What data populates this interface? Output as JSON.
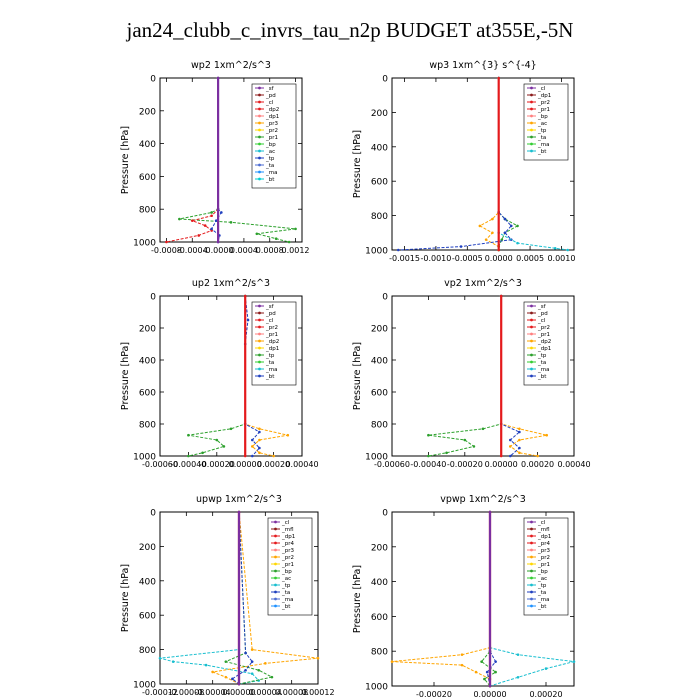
{
  "title": "jan24_clubb_c_invrs_tau_n2p  BUDGET at355E,-5N",
  "chart_data": [
    {
      "type": "line",
      "title": "wp2  1xm^2/s^3",
      "ylabel": "Pressure [hPa]",
      "ylim": [
        1000,
        0
      ],
      "xlim": [
        -0.0009,
        0.0013
      ],
      "xticks": [
        -0.0008,
        -0.0004,
        0,
        0.0004,
        0.0008,
        0.0012
      ],
      "xtick_labels": [
        "-0.0008",
        "-0.0004",
        "-0.0000",
        "0.0004",
        "0.0008",
        "0.0012"
      ],
      "yticks": [
        0,
        200,
        400,
        600,
        800,
        1000
      ],
      "legend": [
        "_sf",
        "_pd",
        "_cl",
        "_dp2",
        "_dp1",
        "_pr3",
        "_pr2",
        "_pr1",
        "_bp",
        "_ac",
        "_tp",
        "_ta",
        "_ma",
        "_bt"
      ],
      "legend_placement": "top-right",
      "series": [
        {
          "color": "#2ca02c",
          "p": [
            0,
            800,
            820,
            860,
            880,
            920,
            950,
            980,
            1000
          ],
          "v": [
            0,
            0,
            -0.0001,
            -0.0006,
            0.0002,
            0.0012,
            0.0006,
            0.0009,
            0.0011
          ]
        },
        {
          "color": "#e41a1c",
          "p": [
            0,
            800,
            840,
            870,
            900,
            930,
            960,
            1000
          ],
          "v": [
            0,
            0,
            -0.0001,
            -0.0004,
            -0.0002,
            -0.0001,
            -0.0003,
            -0.0008
          ]
        },
        {
          "color": "#1f3fbf",
          "p": [
            0,
            800,
            820,
            870,
            920,
            960,
            1000
          ],
          "v": [
            0,
            0,
            5e-05,
            -3e-05,
            -0.0001,
            2e-05,
            0
          ]
        },
        {
          "color": "#7b2fa0",
          "p": [
            0,
            1000
          ],
          "v": [
            0,
            0
          ]
        }
      ]
    },
    {
      "type": "line",
      "title": "wp3  1xm^{3} s^{-4}",
      "ylabel": "Pressure [hPa]",
      "ylim": [
        1000,
        0
      ],
      "xlim": [
        -0.0017,
        0.0012
      ],
      "xticks": [
        -0.0015,
        -0.001,
        -0.0005,
        0,
        0.0005,
        0.001
      ],
      "xtick_labels": [
        "-0.0015",
        "-0.0010",
        "-0.0005",
        "0.0000",
        "0.0005",
        "0.0010"
      ],
      "yticks": [
        0,
        200,
        400,
        600,
        800,
        1000
      ],
      "legend": [
        "_cl",
        "_dp1",
        "_pr2",
        "_pr1",
        "_bp",
        "_ac",
        "_tp",
        "_ta",
        "_ma",
        "_bt"
      ],
      "legend_placement": "top-right",
      "series": [
        {
          "color": "#ffa500",
          "p": [
            0,
            780,
            820,
            860,
            900,
            940,
            980,
            1000
          ],
          "v": [
            0,
            0,
            -0.0001,
            -0.0003,
            -0.0001,
            -0.0002,
            0,
            0
          ]
        },
        {
          "color": "#2ca02c",
          "p": [
            0,
            780,
            820,
            860,
            900,
            940,
            980,
            1000
          ],
          "v": [
            0,
            0,
            0.0001,
            0.0003,
            0.0001,
            5e-05,
            0,
            0
          ]
        },
        {
          "color": "#1f3fbf",
          "p": [
            0,
            780,
            820,
            860,
            900,
            940,
            980,
            1000
          ],
          "v": [
            0,
            0,
            0.0001,
            0.0002,
            0.0001,
            0.0002,
            -0.0006,
            -0.0016
          ]
        },
        {
          "color": "#17becf",
          "p": [
            0,
            900,
            960,
            990,
            1000
          ],
          "v": [
            0,
            0,
            0.0003,
            0.0009,
            0.0011
          ]
        },
        {
          "color": "#e41a1c",
          "p": [
            0,
            1000
          ],
          "v": [
            0,
            0
          ]
        }
      ]
    },
    {
      "type": "line",
      "title": "up2  1xm^2/s^3",
      "ylabel": "Pressure [hPa]",
      "ylim": [
        1000,
        0
      ],
      "xlim": [
        -0.0006,
        0.0004
      ],
      "xticks": [
        -0.0006,
        -0.0004,
        -0.0002,
        0,
        0.0002,
        0.0004
      ],
      "xtick_labels": [
        "-0.00060",
        "-0.00040",
        "-0.00020",
        "0.00000",
        "0.00020",
        "0.00040"
      ],
      "yticks": [
        0,
        200,
        400,
        600,
        800,
        1000
      ],
      "legend": [
        "_sf",
        "_pd",
        "_cl",
        "_pr2",
        "_pr1",
        "_dp2",
        "_dp1",
        "_tp",
        "_ta",
        "_ma",
        "_bt"
      ],
      "legend_placement": "top-right",
      "series": [
        {
          "color": "#2ca02c",
          "p": [
            0,
            800,
            830,
            870,
            900,
            940,
            980,
            1000
          ],
          "v": [
            0,
            0,
            -0.0001,
            -0.0004,
            -0.0002,
            -0.00015,
            -0.0003,
            -0.0004
          ]
        },
        {
          "color": "#ffa500",
          "p": [
            0,
            800,
            830,
            870,
            900,
            940,
            980,
            1000
          ],
          "v": [
            0,
            0,
            0.0001,
            0.0003,
            0.0001,
            5e-05,
            0.0001,
            0.0002
          ]
        },
        {
          "color": "#1f3fbf",
          "p": [
            0,
            150,
            300,
            800,
            850,
            900,
            950,
            1000
          ],
          "v": [
            0,
            2e-05,
            0,
            0,
            0.0001,
            5e-05,
            0.0001,
            5e-05
          ]
        },
        {
          "color": "#e41a1c",
          "p": [
            0,
            1000
          ],
          "v": [
            0,
            0
          ]
        }
      ]
    },
    {
      "type": "line",
      "title": "vp2  1xm^2/s^3",
      "ylabel": "Pressure [hPa]",
      "ylim": [
        1000,
        0
      ],
      "xlim": [
        -0.0006,
        0.0004
      ],
      "xticks": [
        -0.0006,
        -0.0004,
        -0.0002,
        0,
        0.0002,
        0.0004
      ],
      "xtick_labels": [
        "-0.00060",
        "-0.00040",
        "-0.00020",
        "0.00000",
        "0.00020",
        "0.00040"
      ],
      "yticks": [
        0,
        200,
        400,
        600,
        800,
        1000
      ],
      "legend": [
        "_sf",
        "_pd",
        "_cl",
        "_pr2",
        "_pr1",
        "_dp2",
        "_dp1",
        "_tp",
        "_ta",
        "_ma",
        "_bt"
      ],
      "legend_placement": "top-right",
      "series": [
        {
          "color": "#2ca02c",
          "p": [
            0,
            800,
            830,
            870,
            900,
            940,
            980,
            1000
          ],
          "v": [
            0,
            0,
            -0.0001,
            -0.0004,
            -0.0002,
            -0.00015,
            -0.0003,
            -0.0004
          ]
        },
        {
          "color": "#ffa500",
          "p": [
            0,
            800,
            830,
            870,
            900,
            940,
            980,
            1000
          ],
          "v": [
            0,
            0,
            0.0001,
            0.00025,
            0.0001,
            5e-05,
            0.0001,
            0.0002
          ]
        },
        {
          "color": "#1f3fbf",
          "p": [
            0,
            800,
            850,
            900,
            950,
            1000
          ],
          "v": [
            0,
            0,
            0.0001,
            5e-05,
            0.0001,
            5e-05
          ]
        },
        {
          "color": "#e41a1c",
          "p": [
            0,
            1000
          ],
          "v": [
            0,
            0
          ]
        }
      ]
    },
    {
      "type": "line",
      "title": "upwp  1xm^2/s^3",
      "ylabel": "Pressure [hPa]",
      "ylim": [
        1000,
        0
      ],
      "xlim": [
        -0.00012,
        0.00012
      ],
      "xticks": [
        -0.00012,
        -8e-05,
        -4e-05,
        0,
        4e-05,
        8e-05,
        0.00012
      ],
      "xtick_labels": [
        "-0.00012",
        "-0.00008",
        "-0.00004",
        "0.00000",
        "0.00004",
        "0.00008",
        "0.00012"
      ],
      "yticks": [
        0,
        200,
        400,
        600,
        800,
        1000
      ],
      "legend": [
        "_cl",
        "_mfl",
        "_dp1",
        "_pr4",
        "_pr3",
        "_pr2",
        "_pr1",
        "_bp",
        "_ac",
        "_tp",
        "_ta",
        "_ma",
        "_bt"
      ],
      "legend_placement": "top-right",
      "series": [
        {
          "color": "#17becf",
          "p": [
            0,
            800,
            850,
            870,
            890,
            940,
            980,
            1000
          ],
          "v": [
            0,
            0,
            -0.00012,
            -0.0001,
            -5e-05,
            2e-05,
            3e-05,
            0
          ]
        },
        {
          "color": "#ffa500",
          "p": [
            0,
            800,
            850,
            880,
            930,
            960,
            1000
          ],
          "v": [
            0,
            2e-05,
            0.00012,
            4e-05,
            -4e-05,
            -2e-05,
            0
          ]
        },
        {
          "color": "#2ca02c",
          "p": [
            0,
            820,
            870,
            920,
            960,
            1000
          ],
          "v": [
            0,
            1e-05,
            -2e-05,
            3e-05,
            5e-05,
            0
          ]
        },
        {
          "color": "#1f3fbf",
          "p": [
            0,
            820,
            870,
            920,
            970,
            1000
          ],
          "v": [
            0,
            1e-05,
            2e-05,
            1e-05,
            -1e-05,
            0
          ]
        },
        {
          "color": "#e41a1c",
          "p": [
            0,
            1000
          ],
          "v": [
            0,
            0
          ]
        },
        {
          "color": "#7b2fa0",
          "p": [
            0,
            1000
          ],
          "v": [
            0,
            0
          ]
        }
      ]
    },
    {
      "type": "line",
      "title": "vpwp  1xm^2/s^3",
      "ylabel": "Pressure [hPa]",
      "ylim": [
        1000,
        0
      ],
      "xlim": [
        -0.00035,
        0.0003
      ],
      "xticks": [
        -0.0002,
        0,
        0.0002
      ],
      "xtick_labels": [
        "-0.00020",
        "0.00000",
        "0.00020"
      ],
      "yticks": [
        0,
        200,
        400,
        600,
        800,
        1000
      ],
      "legend": [
        "_cl",
        "_mfl",
        "_dp1",
        "_pr4",
        "_pr3",
        "_pr2",
        "_pr1",
        "_bp",
        "_ac",
        "_tp",
        "_ta",
        "_ma",
        "_bt"
      ],
      "legend_placement": "top-right",
      "series": [
        {
          "color": "#17becf",
          "p": [
            0,
            780,
            820,
            860,
            900,
            950,
            1000
          ],
          "v": [
            0,
            0,
            0.0001,
            0.0003,
            0.0002,
            0.0001,
            0
          ]
        },
        {
          "color": "#ffa500",
          "p": [
            0,
            780,
            820,
            860,
            880,
            920,
            960,
            1000
          ],
          "v": [
            0,
            0,
            -0.0001,
            -0.00035,
            -0.0001,
            -5e-05,
            0,
            0
          ]
        },
        {
          "color": "#2ca02c",
          "p": [
            0,
            800,
            860,
            920,
            960,
            1000
          ],
          "v": [
            0,
            0,
            -3e-05,
            2e-05,
            -2e-05,
            0
          ]
        },
        {
          "color": "#1f3fbf",
          "p": [
            0,
            800,
            860,
            920,
            1000
          ],
          "v": [
            0,
            0,
            2e-05,
            -1e-05,
            0
          ]
        },
        {
          "color": "#e41a1c",
          "p": [
            0,
            1000
          ],
          "v": [
            0,
            0
          ]
        },
        {
          "color": "#7b2fa0",
          "p": [
            0,
            1000
          ],
          "v": [
            0,
            0
          ]
        }
      ]
    }
  ]
}
